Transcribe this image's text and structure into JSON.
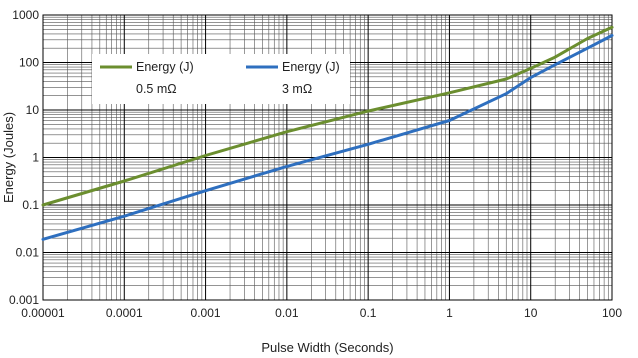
{
  "chart_data": {
    "type": "line",
    "title": "",
    "xlabel": "Pulse Width (Seconds)",
    "ylabel": "Energy (Joules)",
    "x_scale": "log",
    "y_scale": "log",
    "xlim": [
      1e-05,
      100
    ],
    "ylim": [
      0.001,
      1000
    ],
    "x_ticks": [
      "0.00001",
      "0.0001",
      "0.001",
      "0.01",
      "0.1",
      "1",
      "10",
      "100"
    ],
    "y_ticks": [
      "0.001",
      "0.01",
      "0.1",
      "1",
      "10",
      "100",
      "1000"
    ],
    "grid": true,
    "legend_position": "top-left",
    "series": [
      {
        "name": "Energy (J)",
        "name_line2": "0.5 mΩ",
        "color": "#6b8e2f",
        "x": [
          1e-05,
          0.0001,
          0.001,
          0.01,
          0.1,
          1,
          5,
          10,
          20,
          50,
          100
        ],
        "y": [
          0.1,
          0.32,
          1.1,
          3.5,
          9.5,
          23,
          45,
          75,
          130,
          320,
          550
        ]
      },
      {
        "name": "Energy (J)",
        "name_line2": "3 mΩ",
        "color": "#2e6fbf",
        "x": [
          1e-05,
          0.0001,
          0.001,
          0.01,
          0.1,
          1,
          5,
          10,
          20,
          50,
          100
        ],
        "y": [
          0.019,
          0.058,
          0.2,
          0.65,
          1.9,
          6,
          22,
          48,
          90,
          200,
          370
        ]
      }
    ]
  }
}
